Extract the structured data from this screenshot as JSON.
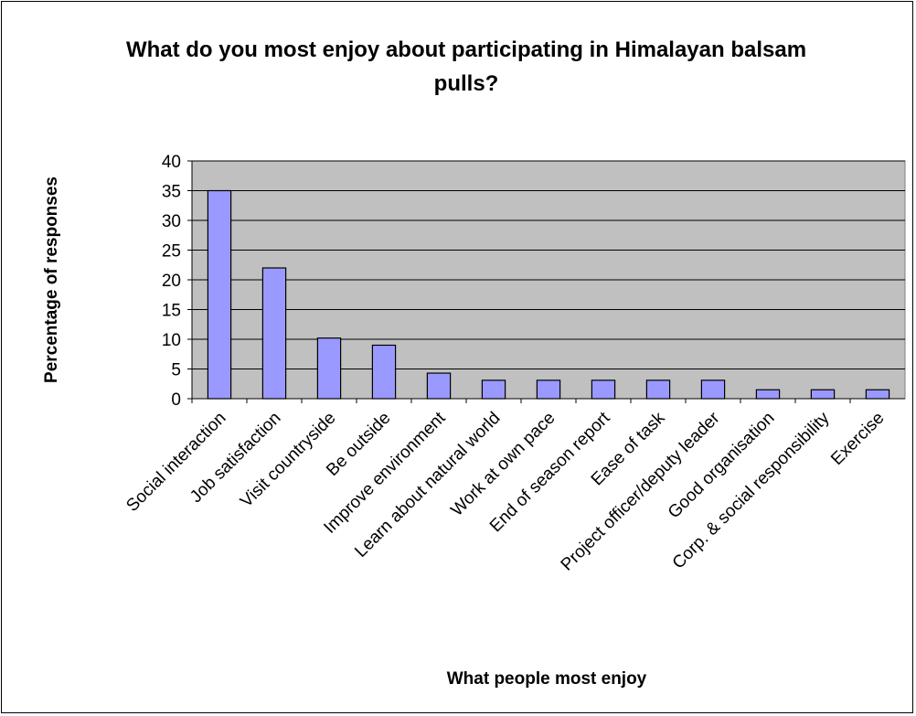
{
  "chart_data": {
    "type": "bar",
    "title": "What do you most enjoy about participating in Himalayan balsam pulls?",
    "x_label": "What people most enjoy",
    "y_label": "Percentage of responses",
    "categories": [
      "Social interaction",
      "Job satisfaction",
      "Visit countryside",
      "Be outside",
      "Improve environment",
      "Learn about natural world",
      "Work at own pace",
      "End of season report",
      "Ease of task",
      "Project officer/deputy leader",
      "Good organisation",
      "Corp. & social responsibility",
      "Exercise"
    ],
    "values": [
      35,
      22,
      10.2,
      9,
      4.3,
      3.1,
      3.1,
      3.1,
      3.1,
      3.1,
      1.5,
      1.5,
      1.5
    ],
    "color": "#9999ff",
    "ylim": [
      0,
      40
    ],
    "yticks": [
      0,
      5,
      10,
      15,
      20,
      25,
      30,
      35,
      40
    ],
    "grid": true
  }
}
